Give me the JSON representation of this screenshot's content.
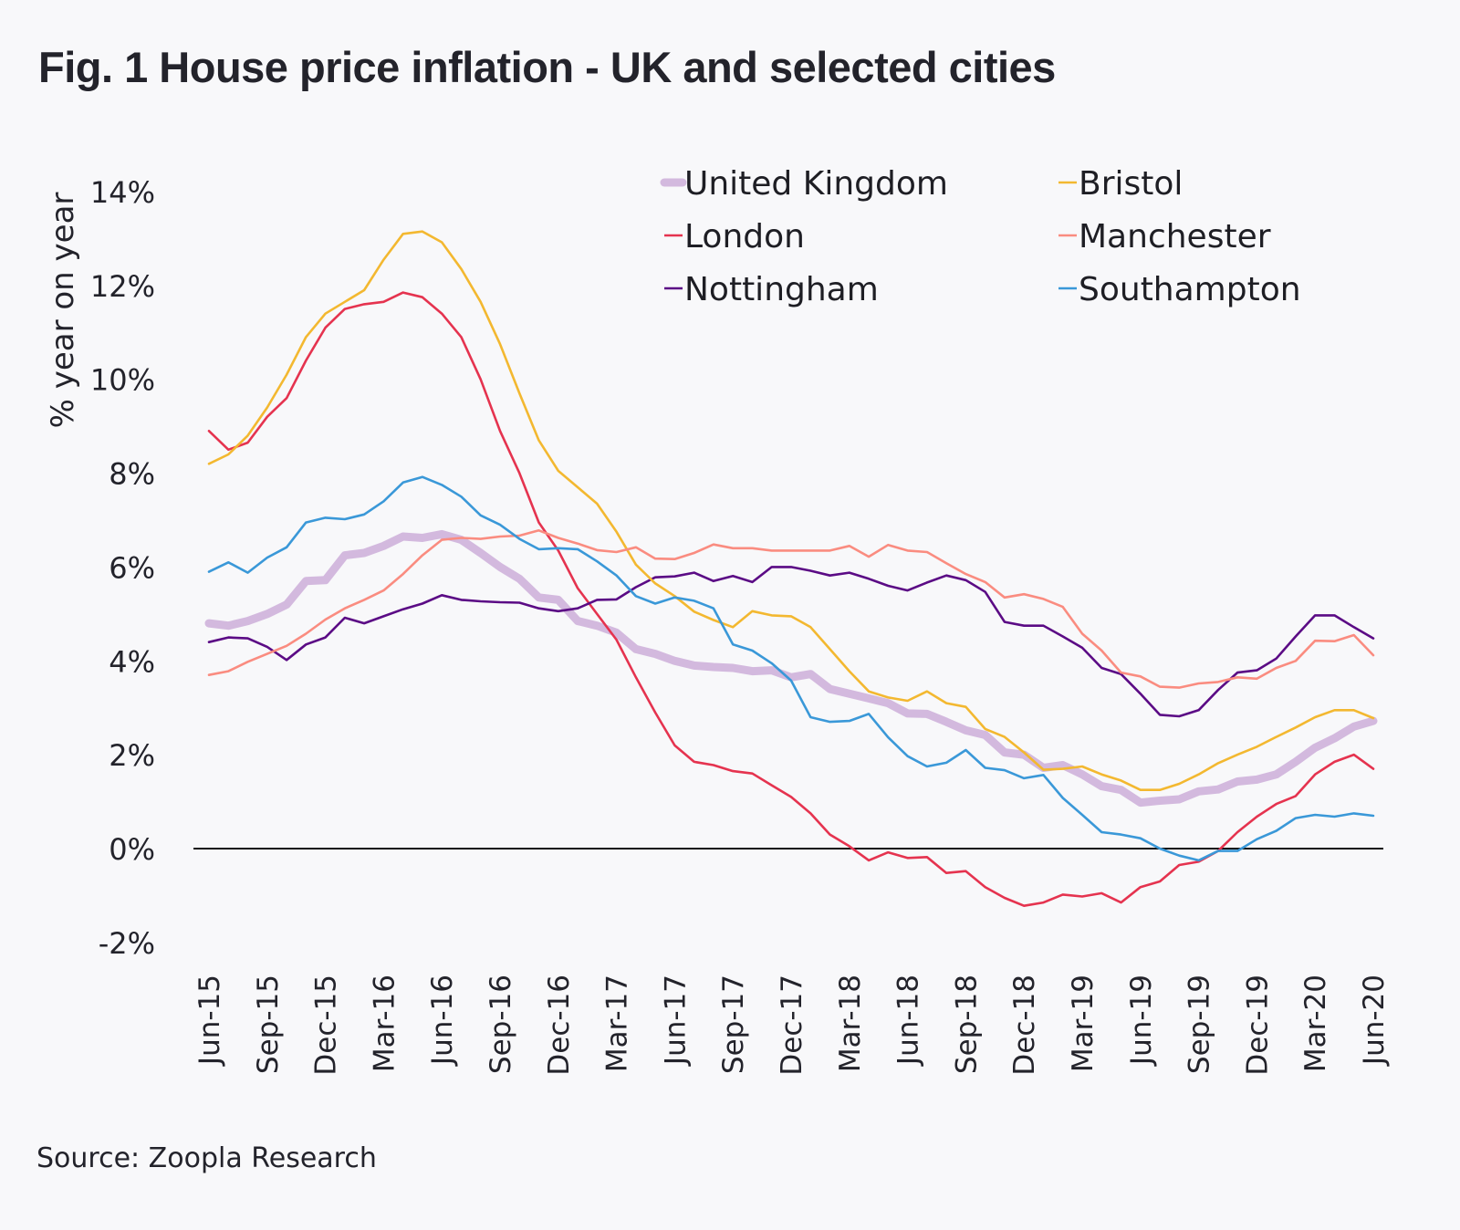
{
  "title": "Fig. 1 House price inflation - UK and selected cities",
  "source": "Source: Zoopla Research",
  "chart_data": {
    "type": "line",
    "title": "Fig. 1 House price inflation - UK and selected cities",
    "xlabel": "",
    "ylabel": "% year on year",
    "ylim": [
      -2,
      14
    ],
    "yticks": [
      -2,
      0,
      2,
      4,
      6,
      8,
      10,
      12,
      14
    ],
    "ytick_labels": [
      "-2%",
      "0%",
      "2%",
      "4%",
      "6%",
      "8%",
      "10%",
      "12%",
      "14%"
    ],
    "x_start": "Jun-15",
    "x_end": "Jun-20",
    "x_frequency": "monthly",
    "xtick_labels": [
      "Jun-15",
      "Sep-15",
      "Dec-15",
      "Mar-16",
      "Jun-16",
      "Sep-16",
      "Dec-16",
      "Mar-17",
      "Jun-17",
      "Sep-17",
      "Dec-17",
      "Mar-18",
      "Jun-18",
      "Sep-18",
      "Dec-18",
      "Mar-19",
      "Jun-19",
      "Sep-19",
      "Dec-19",
      "Mar-20",
      "Jun-20"
    ],
    "grid": false,
    "zero_line": true,
    "legend_position": "top-right",
    "series": [
      {
        "name": "United Kingdom",
        "color": "#d3b9de",
        "thick": true,
        "values": [
          4.8,
          4.75,
          4.85,
          5.0,
          5.2,
          5.7,
          5.72,
          6.25,
          6.3,
          6.45,
          6.65,
          6.62,
          6.7,
          6.58,
          6.3,
          6.0,
          5.75,
          5.35,
          5.3,
          4.85,
          4.75,
          4.6,
          4.25,
          4.15,
          4.0,
          3.9,
          3.87,
          3.85,
          3.78,
          3.8,
          3.65,
          3.72,
          3.4,
          3.3,
          3.2,
          3.1,
          2.88,
          2.87,
          2.7,
          2.52,
          2.42,
          2.05,
          2.0,
          1.72,
          1.78,
          1.58,
          1.33,
          1.25,
          0.98,
          1.02,
          1.05,
          1.22,
          1.26,
          1.43,
          1.47,
          1.58,
          1.85,
          2.15,
          2.35,
          2.6,
          2.72
        ]
      },
      {
        "name": "London",
        "color": "#e5334f",
        "values": [
          8.9,
          8.5,
          8.65,
          9.2,
          9.6,
          10.4,
          11.1,
          11.5,
          11.6,
          11.65,
          11.85,
          11.75,
          11.4,
          10.9,
          10.0,
          8.9,
          8.0,
          6.95,
          6.35,
          5.55,
          5.0,
          4.45,
          3.65,
          2.9,
          2.2,
          1.85,
          1.78,
          1.65,
          1.6,
          1.35,
          1.1,
          0.75,
          0.3,
          0.05,
          -0.25,
          -0.08,
          -0.2,
          -0.18,
          -0.52,
          -0.48,
          -0.82,
          -1.05,
          -1.22,
          -1.15,
          -0.98,
          -1.02,
          -0.95,
          -1.15,
          -0.82,
          -0.7,
          -0.35,
          -0.28,
          -0.05,
          0.35,
          0.68,
          0.95,
          1.12,
          1.58,
          1.85,
          2.0,
          1.7
        ]
      },
      {
        "name": "Nottingham",
        "color": "#5b0b85",
        "values": [
          4.4,
          4.5,
          4.48,
          4.3,
          4.02,
          4.35,
          4.5,
          4.92,
          4.8,
          4.95,
          5.1,
          5.22,
          5.4,
          5.3,
          5.27,
          5.25,
          5.24,
          5.12,
          5.06,
          5.12,
          5.3,
          5.31,
          5.57,
          5.78,
          5.8,
          5.88,
          5.7,
          5.81,
          5.68,
          6.0,
          6.0,
          5.92,
          5.82,
          5.88,
          5.75,
          5.6,
          5.5,
          5.67,
          5.82,
          5.72,
          5.47,
          4.83,
          4.75,
          4.75,
          4.52,
          4.28,
          3.85,
          3.72,
          3.3,
          2.85,
          2.82,
          2.95,
          3.38,
          3.75,
          3.8,
          4.05,
          4.52,
          4.97,
          4.97,
          4.72,
          4.48
        ]
      },
      {
        "name": "Bristol",
        "color": "#f3b830",
        "values": [
          8.2,
          8.4,
          8.8,
          9.4,
          10.1,
          10.9,
          11.4,
          11.65,
          11.9,
          12.55,
          13.1,
          13.15,
          12.92,
          12.35,
          11.65,
          10.75,
          9.7,
          8.7,
          8.05,
          7.7,
          7.35,
          6.75,
          6.05,
          5.65,
          5.38,
          5.05,
          4.87,
          4.72,
          5.06,
          4.97,
          4.95,
          4.72,
          4.25,
          3.78,
          3.35,
          3.22,
          3.15,
          3.35,
          3.1,
          3.02,
          2.55,
          2.38,
          2.05,
          1.68,
          1.7,
          1.75,
          1.58,
          1.45,
          1.25,
          1.25,
          1.38,
          1.58,
          1.82,
          2.0,
          2.17,
          2.38,
          2.58,
          2.8,
          2.95,
          2.95,
          2.78
        ]
      },
      {
        "name": "Manchester",
        "color": "#fa8c80",
        "values": [
          3.7,
          3.78,
          3.98,
          4.15,
          4.32,
          4.58,
          4.88,
          5.12,
          5.3,
          5.5,
          5.85,
          6.25,
          6.58,
          6.62,
          6.6,
          6.65,
          6.67,
          6.78,
          6.62,
          6.5,
          6.36,
          6.32,
          6.42,
          6.18,
          6.17,
          6.3,
          6.48,
          6.4,
          6.4,
          6.35,
          6.35,
          6.35,
          6.35,
          6.45,
          6.22,
          6.47,
          6.35,
          6.32,
          6.08,
          5.85,
          5.68,
          5.35,
          5.42,
          5.32,
          5.15,
          4.58,
          4.22,
          3.75,
          3.67,
          3.45,
          3.43,
          3.52,
          3.55,
          3.65,
          3.62,
          3.85,
          4.0,
          4.43,
          4.42,
          4.55,
          4.12
        ]
      },
      {
        "name": "Southampton",
        "color": "#3a98d8",
        "values": [
          5.9,
          6.1,
          5.88,
          6.2,
          6.42,
          6.95,
          7.05,
          7.02,
          7.12,
          7.4,
          7.8,
          7.92,
          7.75,
          7.5,
          7.1,
          6.9,
          6.6,
          6.38,
          6.4,
          6.38,
          6.12,
          5.82,
          5.38,
          5.22,
          5.35,
          5.28,
          5.12,
          4.35,
          4.22,
          3.95,
          3.58,
          2.8,
          2.7,
          2.72,
          2.87,
          2.37,
          1.97,
          1.75,
          1.83,
          2.1,
          1.72,
          1.67,
          1.5,
          1.57,
          1.08,
          0.72,
          0.35,
          0.3,
          0.22,
          0.0,
          -0.15,
          -0.25,
          -0.05,
          -0.05,
          0.2,
          0.38,
          0.65,
          0.72,
          0.68,
          0.75,
          0.7
        ]
      }
    ]
  }
}
